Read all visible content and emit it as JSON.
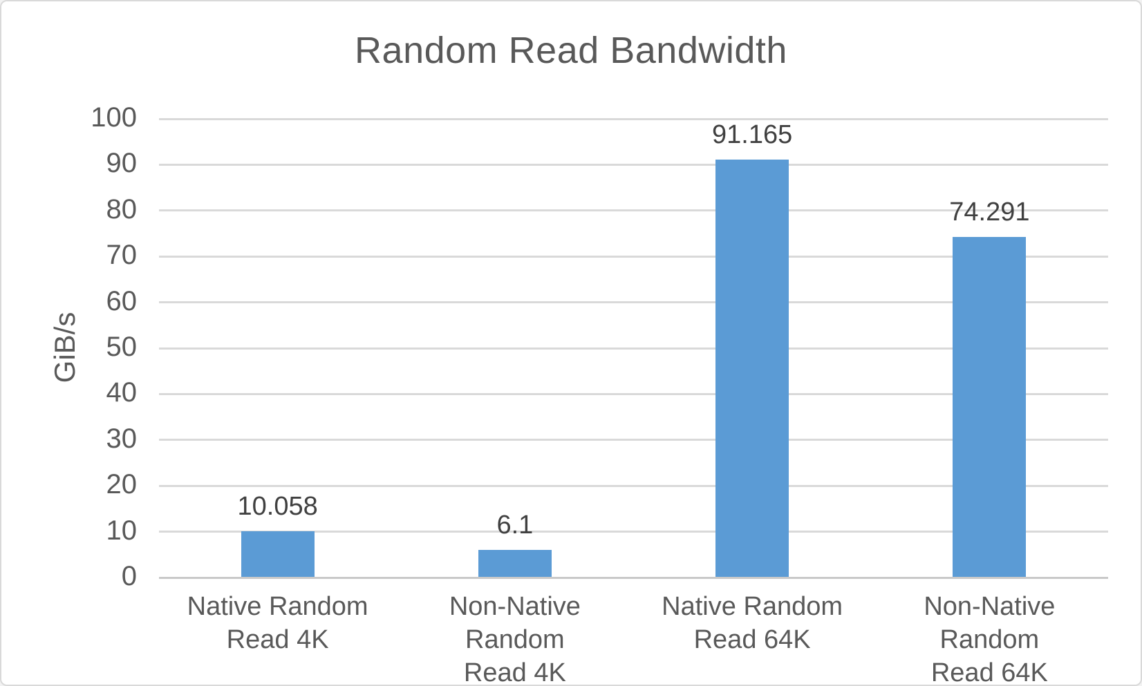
{
  "window": {
    "background": "#ffffff",
    "border_color": "#d9d9d9"
  },
  "chart_data": {
    "type": "bar",
    "title": "Random Read Bandwidth",
    "xlabel": "",
    "ylabel": "GiB/s",
    "categories": [
      "Native Random Read 4K",
      "Non-Native Random Read 4K",
      "Native Random Read 64K",
      "Non-Native Random Read 64K"
    ],
    "category_lines": [
      [
        "Native Random",
        "Read 4K"
      ],
      [
        "Non-Native Random",
        "Read 4K"
      ],
      [
        "Native Random",
        "Read 64K"
      ],
      [
        "Non-Native Random",
        "Read 64K"
      ]
    ],
    "values": [
      10.058,
      6.1,
      91.165,
      74.291
    ],
    "value_labels": [
      "10.058",
      "6.1",
      "91.165",
      "74.291"
    ],
    "ylim": [
      0,
      100
    ],
    "yticks": [
      0,
      10,
      20,
      30,
      40,
      50,
      60,
      70,
      80,
      90,
      100
    ],
    "grid": true,
    "legend": false,
    "colors": {
      "bar": "#5b9bd5",
      "title_text": "#595959",
      "axis_text": "#595959",
      "value_label_text": "#404040",
      "gridline": "#d9d9d9"
    }
  }
}
